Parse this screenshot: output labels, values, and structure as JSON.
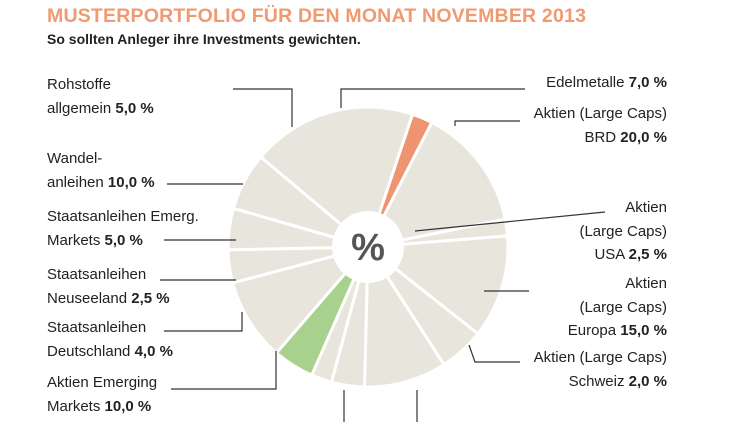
{
  "title": "MUSTERPORTFOLIO FÜR DEN MONAT NOVEMBER 2013",
  "subtitle": "So sollten Anleger ihre Investments gewichten.",
  "center_label": "%",
  "colors": {
    "slice": "#e8e5dc",
    "stroke": "#ffffff",
    "highlight_usa": "#ee9470",
    "highlight_emerg": "#a8d18e",
    "leader": "#333333",
    "title": "#ef9a72",
    "center_text": "#555555"
  },
  "chart_data": {
    "type": "pie",
    "title": "MUSTERPORTFOLIO FÜR DEN MONAT NOVEMBER 2013",
    "subtitle": "So sollten Anleger ihre Investments gewichten.",
    "unit": "%",
    "slices": [
      {
        "label_lines": [
          "Edelmetalle"
        ],
        "value": 7.0,
        "value_text": "7,0 %"
      },
      {
        "label_lines": [
          "Aktien (Large Caps)",
          "BRD"
        ],
        "value": 20.0,
        "value_text": "20,0 %"
      },
      {
        "label_lines": [
          "Aktien",
          "(Large Caps)",
          "USA"
        ],
        "value": 2.5,
        "value_text": "2,5 %"
      },
      {
        "label_lines": [
          "Aktien",
          "(Large Caps)",
          "Europa"
        ],
        "value": 15.0,
        "value_text": "15,0 %"
      },
      {
        "label_lines": [
          "Aktien (Large Caps)",
          "Schweiz"
        ],
        "value": 2.0,
        "value_text": "2,0 %"
      },
      {
        "label_lines": [],
        "value": 12.5,
        "value_text": ""
      },
      {
        "label_lines": [],
        "value": 5.5,
        "value_text": ""
      },
      {
        "label_lines": [
          "Aktien Emerging",
          "Markets"
        ],
        "value": 10.0,
        "value_text": "10,0 %"
      },
      {
        "label_lines": [
          "Staatsanleihen",
          "Deutschland"
        ],
        "value": 4.0,
        "value_text": "4,0 %"
      },
      {
        "label_lines": [
          "Staatsanleihen",
          "Neuseeland"
        ],
        "value": 2.5,
        "value_text": "2,5 %"
      },
      {
        "label_lines": [
          "Staatsanleihen Emerg.",
          "Markets"
        ],
        "value": 5.0,
        "value_text": "5,0 %"
      },
      {
        "label_lines": [
          "Wandel-",
          "anleihen"
        ],
        "value": 10.0,
        "value_text": "10,0 %"
      },
      {
        "label_lines": [],
        "value": 4.0,
        "value_text": ""
      },
      {
        "label_lines": [
          "Rohstoffe",
          "allgemein"
        ],
        "value": 5.0,
        "value_text": "5,0 %"
      }
    ]
  }
}
